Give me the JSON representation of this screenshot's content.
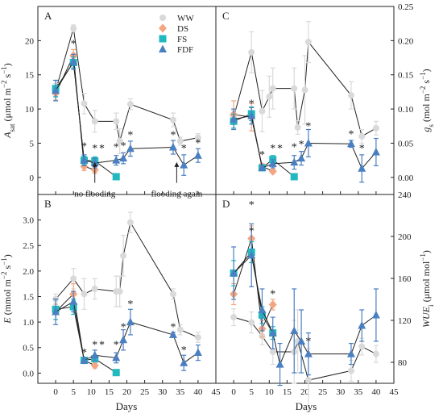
{
  "figure": {
    "xlabel": "Days",
    "legend": [
      "WW",
      "DS",
      "FS",
      "FDF"
    ],
    "colors": {
      "WW": "#d9d9d9",
      "DS": "#f4a582",
      "FS": "#22b8c0",
      "FDF": "#4a7fc1",
      "axis": "#222222",
      "line": "#222222"
    },
    "marker_shapes": {
      "WW": "circle",
      "DS": "diamond",
      "FS": "square",
      "FDF": "triangle"
    }
  },
  "chart_data": [
    {
      "panel": "A",
      "type": "line",
      "ylabel_parts": [
        "A",
        "sat",
        " (μmol m",
        "−2",
        " s",
        "−1",
        ")"
      ],
      "y_side": "left",
      "ylim": [
        -2.5,
        25
      ],
      "yticks": [
        0,
        5,
        10,
        15,
        20
      ],
      "xlim": [
        -5,
        45
      ],
      "xticks": [
        0,
        5,
        10,
        15,
        20,
        25,
        30,
        35,
        40,
        45
      ],
      "series": [
        {
          "name": "WW",
          "x": [
            0,
            5,
            8,
            11,
            17,
            18,
            21,
            33,
            35,
            40
          ],
          "y": [
            12.7,
            21.8,
            10.8,
            8.2,
            8.2,
            5.3,
            10.7,
            8.4,
            5.3,
            5.8
          ],
          "err": [
            1.0,
            0.5,
            1.5,
            1.6,
            1.2,
            1.8,
            0.8,
            1.0,
            0.6,
            0.6
          ]
        },
        {
          "name": "DS",
          "x": [
            0,
            5,
            8,
            11
          ],
          "y": [
            12.3,
            17.8,
            1.6,
            1.1
          ],
          "err": [
            1.0,
            0.9,
            0.6,
            0.5
          ]
        },
        {
          "name": "FS",
          "x": [
            0,
            5,
            8,
            11,
            17
          ],
          "y": [
            13.0,
            16.8,
            2.5,
            2.4,
            0.1
          ],
          "err": [
            1.2,
            0.8,
            0.6,
            0.6,
            0.2
          ]
        },
        {
          "name": "FDF",
          "x": [
            0,
            5,
            8,
            11,
            17,
            19,
            21,
            33,
            36,
            40
          ],
          "y": [
            12.7,
            16.9,
            2.5,
            2.1,
            2.5,
            2.8,
            4.2,
            4.4,
            1.8,
            3.2
          ],
          "err": [
            1.5,
            1.1,
            0.8,
            0.7,
            0.7,
            0.8,
            1.1,
            1.0,
            1.5,
            1.0
          ]
        }
      ],
      "asterisks": [
        {
          "x": 5,
          "y": 19.5
        },
        {
          "x": 8,
          "y": 4.5
        },
        {
          "x": 11,
          "y": 4.2
        },
        {
          "x": 13,
          "y": 4.2
        },
        {
          "x": 17,
          "y": 4.4
        },
        {
          "x": 19,
          "y": 4.6
        },
        {
          "x": 21,
          "y": 6.2
        },
        {
          "x": 33,
          "y": 6.2
        },
        {
          "x": 36,
          "y": 4.2
        },
        {
          "x": 40,
          "y": 5.0
        }
      ],
      "annotations": [
        {
          "text": "no flooding",
          "x": 11,
          "y": -2.8,
          "arrow_from_y": -0.8,
          "arrow_to_y": 2.0
        },
        {
          "text": "flooding again",
          "x": 34,
          "y": -2.8,
          "arrow_from_y": -0.8,
          "arrow_to_y": 2.0
        }
      ]
    },
    {
      "panel": "C",
      "type": "line",
      "ylabel_parts": [
        "g",
        "s",
        " (mol m",
        "−2",
        " s",
        "−1",
        ")"
      ],
      "y_side": "right",
      "ylim": [
        -0.025,
        0.25
      ],
      "yticks": [
        0.0,
        0.05,
        0.1,
        0.15,
        0.2,
        0.25
      ],
      "ytick_labels": [
        "0.00",
        "0.05",
        "0.10",
        "0.15",
        "0.20",
        "0.25"
      ],
      "xlim": [
        -5,
        45
      ],
      "xticks": [
        0,
        5,
        10,
        15,
        20,
        25,
        30,
        35,
        40,
        45
      ],
      "series": [
        {
          "name": "WW",
          "x": [
            0,
            5,
            8,
            10,
            11,
            17,
            18,
            20,
            21,
            33,
            36,
            40
          ],
          "y": [
            0.088,
            0.183,
            0.097,
            0.118,
            0.13,
            0.13,
            0.073,
            0.128,
            0.198,
            0.12,
            0.06,
            0.072
          ],
          "err": [
            0.01,
            0.03,
            0.03,
            0.03,
            0.03,
            0.03,
            0.01,
            0.05,
            0.03,
            0.02,
            0.01,
            0.01
          ]
        },
        {
          "name": "DS",
          "x": [
            0,
            5,
            8,
            11
          ],
          "y": [
            0.092,
            0.088,
            0.016,
            0.009
          ],
          "err": [
            0.02,
            0.02,
            0.004,
            0.003
          ]
        },
        {
          "name": "FS",
          "x": [
            0,
            5,
            8,
            11,
            17
          ],
          "y": [
            0.082,
            0.093,
            0.014,
            0.026,
            0.001
          ],
          "err": [
            0.01,
            0.01,
            0.004,
            0.006,
            0.002
          ]
        },
        {
          "name": "FDF",
          "x": [
            0,
            5,
            8,
            11,
            17,
            19,
            21,
            33,
            36,
            40
          ],
          "y": [
            0.085,
            0.09,
            0.014,
            0.02,
            0.022,
            0.028,
            0.05,
            0.049,
            0.013,
            0.037
          ],
          "err": [
            0.015,
            0.012,
            0.004,
            0.006,
            0.01,
            0.01,
            0.02,
            0.005,
            0.02,
            0.02
          ]
        }
      ],
      "asterisks": [
        {
          "x": 5,
          "y": 0.108
        },
        {
          "x": 8,
          "y": 0.033
        },
        {
          "x": 11,
          "y": 0.042
        },
        {
          "x": 13,
          "y": 0.042
        },
        {
          "x": 17,
          "y": 0.044
        },
        {
          "x": 19,
          "y": 0.048
        },
        {
          "x": 21,
          "y": 0.075
        },
        {
          "x": 33,
          "y": 0.063
        },
        {
          "x": 36,
          "y": 0.042
        }
      ]
    },
    {
      "panel": "B",
      "type": "line",
      "ylabel_parts": [
        "E",
        "",
        " (mmol m",
        "−2",
        " s",
        "−1",
        ")"
      ],
      "y_side": "left",
      "ylim": [
        -0.2,
        3.5
      ],
      "yticks": [
        0.0,
        0.5,
        1.0,
        1.5,
        2.0,
        2.5,
        3.0
      ],
      "ytick_labels": [
        "0.0",
        "0.5",
        "1.0",
        "1.5",
        "2.0",
        "2.5",
        "3.0"
      ],
      "xlim": [
        -5,
        45
      ],
      "xticks": [
        0,
        5,
        10,
        15,
        20,
        25,
        30,
        35,
        40,
        45
      ],
      "series": [
        {
          "name": "WW",
          "x": [
            0,
            5,
            8,
            11,
            17,
            18,
            19,
            21,
            33,
            35,
            40
          ],
          "y": [
            1.45,
            1.85,
            1.55,
            1.65,
            1.6,
            1.6,
            2.3,
            2.95,
            1.55,
            0.85,
            0.7
          ],
          "err": [
            0.1,
            0.2,
            0.3,
            0.2,
            0.3,
            0.3,
            0.4,
            0.2,
            0.1,
            0.1,
            0.1
          ]
        },
        {
          "name": "DS",
          "x": [
            0,
            5,
            8,
            11
          ],
          "y": [
            1.2,
            1.55,
            0.25,
            0.15
          ],
          "err": [
            0.15,
            0.2,
            0.05,
            0.05
          ]
        },
        {
          "name": "FS",
          "x": [
            0,
            5,
            8,
            11,
            17
          ],
          "y": [
            1.25,
            1.3,
            0.25,
            0.28,
            0.01
          ],
          "err": [
            0.2,
            0.15,
            0.05,
            0.05,
            0.02
          ]
        },
        {
          "name": "FDF",
          "x": [
            0,
            5,
            8,
            11,
            17,
            19,
            21,
            33,
            36,
            40
          ],
          "y": [
            1.2,
            1.4,
            0.25,
            0.35,
            0.3,
            0.65,
            1.0,
            0.75,
            0.2,
            0.4
          ],
          "err": [
            0.25,
            0.2,
            0.06,
            0.1,
            0.1,
            0.2,
            0.25,
            0.05,
            0.15,
            0.15
          ]
        }
      ],
      "asterisks": [
        {
          "x": 8,
          "y": 0.4
        },
        {
          "x": 11,
          "y": 0.55
        },
        {
          "x": 13,
          "y": 0.55
        },
        {
          "x": 17,
          "y": 0.55
        },
        {
          "x": 19,
          "y": 0.9
        },
        {
          "x": 21,
          "y": 1.35
        },
        {
          "x": 33,
          "y": 0.9
        },
        {
          "x": 36,
          "y": 0.45
        }
      ]
    },
    {
      "panel": "D",
      "type": "line",
      "ylabel_parts": [
        "WUE",
        "i",
        " (μmol mol",
        "−1",
        ")",
        "",
        ""
      ],
      "y_side": "right",
      "ylim": [
        60,
        240
      ],
      "yticks": [
        80,
        120,
        160,
        200,
        240
      ],
      "xlim": [
        -5,
        45
      ],
      "xticks": [
        0,
        5,
        10,
        15,
        20,
        25,
        30,
        35,
        40,
        45
      ],
      "series": [
        {
          "name": "WW",
          "x": [
            0,
            5,
            8,
            11,
            17,
            18,
            21,
            33,
            36,
            40
          ],
          "y": [
            123,
            118,
            105,
            90,
            90,
            100,
            63,
            72,
            95,
            88
          ],
          "err": [
            8,
            10,
            8,
            12,
            30,
            30,
            30,
            10,
            8,
            8
          ]
        },
        {
          "name": "DS",
          "x": [
            0,
            5,
            8,
            11
          ],
          "y": [
            145,
            198,
            112,
            135
          ],
          "err": [
            10,
            12,
            8,
            5
          ]
        },
        {
          "name": "FS",
          "x": [
            0,
            5,
            8,
            11
          ],
          "y": [
            165,
            185,
            125,
            108
          ],
          "err": [
            12,
            10,
            8,
            6
          ]
        },
        {
          "name": "FDF",
          "x": [
            0,
            5,
            8,
            11,
            13,
            17,
            19,
            21,
            33,
            36,
            40
          ],
          "y": [
            165,
            182,
            130,
            108,
            78,
            110,
            100,
            88,
            88,
            115,
            125
          ],
          "err": [
            25,
            30,
            20,
            15,
            20,
            40,
            30,
            20,
            10,
            15,
            25
          ]
        }
      ],
      "asterisks": [
        {
          "x": 5,
          "y": 230
        },
        {
          "x": 5,
          "y": 205
        },
        {
          "x": 11,
          "y": 145
        },
        {
          "x": 21,
          "y": 100
        }
      ]
    }
  ]
}
